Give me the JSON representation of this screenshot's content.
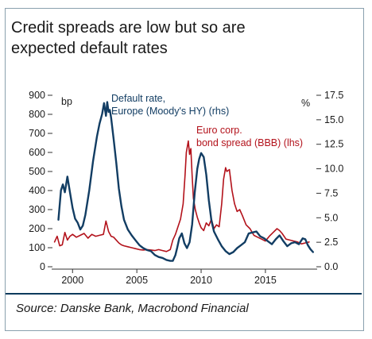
{
  "title": [
    "Credit spreads are low but so are",
    "expected default rates"
  ],
  "source": "Source: Danske Bank, Macrobond Financial",
  "colors": {
    "blue": "#123d63",
    "red": "#b3121b",
    "text": "#1a1a1a",
    "axis": "#333333"
  },
  "chart_data": {
    "type": "line",
    "xlim": [
      1998.5,
      2018.9
    ],
    "x_ticks": [
      2000,
      2005,
      2010,
      2015
    ],
    "x_tick_labels": [
      "2000",
      "2005",
      "2010",
      "2015"
    ],
    "left_axis": {
      "unit": "bp",
      "ylim": [
        0,
        900
      ],
      "ticks": [
        0,
        100,
        200,
        300,
        400,
        500,
        600,
        700,
        800,
        900
      ]
    },
    "right_axis": {
      "unit": "%",
      "ylim": [
        0,
        17.5
      ],
      "ticks": [
        0.0,
        2.5,
        5.0,
        7.5,
        10.0,
        12.5,
        15.0,
        17.5
      ],
      "tick_labels": [
        "0.0",
        "2.5",
        "5.0",
        "7.5",
        "10.0",
        "12.5",
        "15.0",
        "17.5"
      ]
    },
    "grid": false,
    "series": [
      {
        "name": "Default rate, Europe (Moody's HY) (rhs)",
        "label_lines": [
          "Default rate,",
          "Europe (Moody's HY) (rhs)"
        ],
        "axis": "right",
        "color": "#123d63",
        "x": [
          1998.9,
          1999.1,
          1999.25,
          1999.4,
          1999.6,
          1999.8,
          2000.0,
          2000.2,
          2000.4,
          2000.6,
          2000.8,
          2001.0,
          2001.3,
          2001.6,
          2001.9,
          2002.1,
          2002.3,
          2002.45,
          2002.6,
          2002.7,
          2002.8,
          2002.9,
          2003.0,
          2003.2,
          2003.4,
          2003.6,
          2003.8,
          2004.0,
          2004.3,
          2004.6,
          2004.9,
          2005.2,
          2005.5,
          2005.8,
          2006.1,
          2006.4,
          2006.7,
          2007.0,
          2007.3,
          2007.6,
          2007.8,
          2008.0,
          2008.15,
          2008.3,
          2008.5,
          2008.7,
          2008.9,
          2009.1,
          2009.3,
          2009.5,
          2009.7,
          2009.85,
          2010.0,
          2010.2,
          2010.4,
          2010.6,
          2010.8,
          2011.0,
          2011.3,
          2011.6,
          2011.9,
          2012.2,
          2012.5,
          2012.8,
          2013.1,
          2013.4,
          2013.7,
          2014.0,
          2014.3,
          2014.6,
          2014.9,
          2015.2,
          2015.5,
          2015.8,
          2016.1,
          2016.4,
          2016.7,
          2017.0,
          2017.3,
          2017.6,
          2017.9,
          2018.1,
          2018.3,
          2018.5,
          2018.7
        ],
        "y": [
          4.8,
          7.8,
          8.4,
          7.6,
          9.2,
          7.6,
          6.0,
          4.9,
          4.5,
          3.8,
          4.2,
          5.3,
          7.8,
          10.8,
          13.3,
          14.6,
          15.6,
          16.7,
          15.4,
          16.8,
          15.8,
          16.0,
          15.2,
          13.0,
          10.6,
          8.0,
          6.2,
          4.8,
          3.8,
          3.2,
          2.7,
          2.2,
          1.9,
          1.7,
          1.6,
          1.2,
          1.0,
          0.9,
          0.7,
          0.6,
          0.6,
          1.2,
          2.0,
          2.9,
          3.4,
          2.4,
          1.9,
          2.5,
          4.3,
          7.5,
          10.0,
          11.0,
          11.6,
          11.2,
          9.4,
          6.8,
          4.7,
          3.6,
          2.8,
          2.1,
          1.6,
          1.3,
          1.5,
          1.9,
          2.2,
          2.5,
          3.4,
          3.5,
          3.6,
          3.1,
          2.9,
          2.6,
          2.3,
          2.8,
          3.2,
          2.6,
          2.1,
          2.4,
          2.5,
          2.3,
          2.9,
          2.8,
          2.2,
          1.8,
          1.5
        ]
      },
      {
        "name": "Euro corp. bond spread (BBB) (lhs)",
        "label_lines": [
          "Euro corp.",
          "bond spread (BBB) (lhs)"
        ],
        "axis": "left",
        "color": "#b3121b",
        "x": [
          1998.6,
          1998.8,
          1999.0,
          1999.2,
          1999.4,
          1999.6,
          1999.8,
          2000.0,
          2000.3,
          2000.6,
          2000.9,
          2001.2,
          2001.5,
          2001.8,
          2002.1,
          2002.4,
          2002.6,
          2002.8,
          2003.0,
          2003.2,
          2003.4,
          2003.6,
          2003.8,
          2004.0,
          2004.3,
          2004.6,
          2004.9,
          2005.2,
          2005.5,
          2005.8,
          2006.1,
          2006.4,
          2006.7,
          2007.0,
          2007.3,
          2007.6,
          2007.8,
          2008.0,
          2008.2,
          2008.4,
          2008.6,
          2008.75,
          2008.85,
          2009.0,
          2009.1,
          2009.2,
          2009.3,
          2009.4,
          2009.55,
          2009.7,
          2009.85,
          2010.0,
          2010.2,
          2010.4,
          2010.6,
          2010.8,
          2011.0,
          2011.2,
          2011.4,
          2011.6,
          2011.75,
          2011.9,
          2012.0,
          2012.2,
          2012.4,
          2012.6,
          2012.8,
          2013.0,
          2013.2,
          2013.5,
          2013.8,
          2014.1,
          2014.4,
          2014.7,
          2015.0,
          2015.3,
          2015.6,
          2015.9,
          2016.1,
          2016.3,
          2016.6,
          2016.9,
          2017.2,
          2017.5,
          2017.8,
          2018.1,
          2018.4
        ],
        "y": [
          130,
          160,
          110,
          115,
          180,
          140,
          160,
          170,
          155,
          165,
          175,
          150,
          170,
          160,
          165,
          170,
          240,
          185,
          160,
          155,
          140,
          125,
          115,
          110,
          105,
          100,
          95,
          90,
          88,
          90,
          88,
          85,
          90,
          85,
          80,
          90,
          140,
          170,
          210,
          250,
          330,
          480,
          600,
          660,
          590,
          620,
          480,
          360,
          300,
          260,
          230,
          205,
          190,
          230,
          215,
          250,
          200,
          220,
          210,
          330,
          460,
          520,
          500,
          510,
          400,
          330,
          290,
          300,
          270,
          220,
          200,
          165,
          155,
          145,
          135,
          160,
          180,
          200,
          190,
          175,
          145,
          140,
          135,
          130,
          120,
          125,
          130
        ]
      }
    ]
  }
}
